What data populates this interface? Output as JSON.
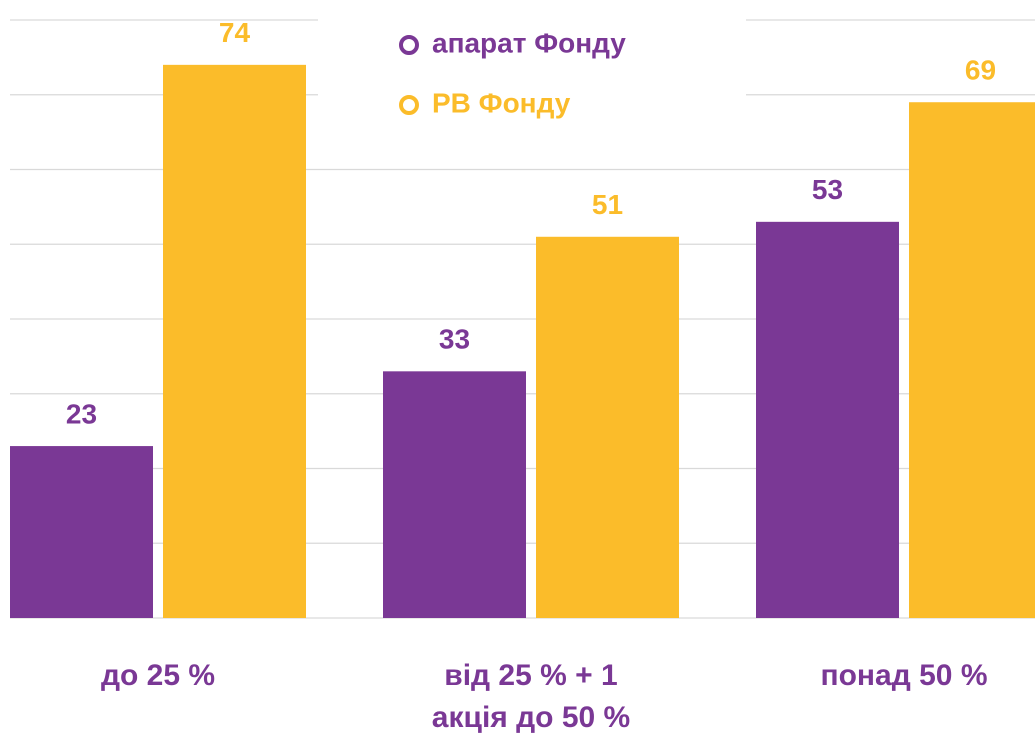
{
  "chart_data": {
    "type": "bar",
    "categories": [
      "до 25 %",
      "від 25 % + 1\nакція до 50 %",
      "понад 50 %"
    ],
    "series": [
      {
        "name": "апарат Фонду",
        "color": "#7a3895",
        "values": [
          23,
          33,
          53
        ]
      },
      {
        "name": "РВ Фонду",
        "color": "#fbbc2a",
        "values": [
          74,
          51,
          69
        ]
      }
    ],
    "ylim": [
      0,
      80
    ],
    "yticks": [
      0,
      10,
      20,
      30,
      40,
      50,
      60,
      70,
      80
    ],
    "grid": true,
    "legend": "upper center"
  }
}
